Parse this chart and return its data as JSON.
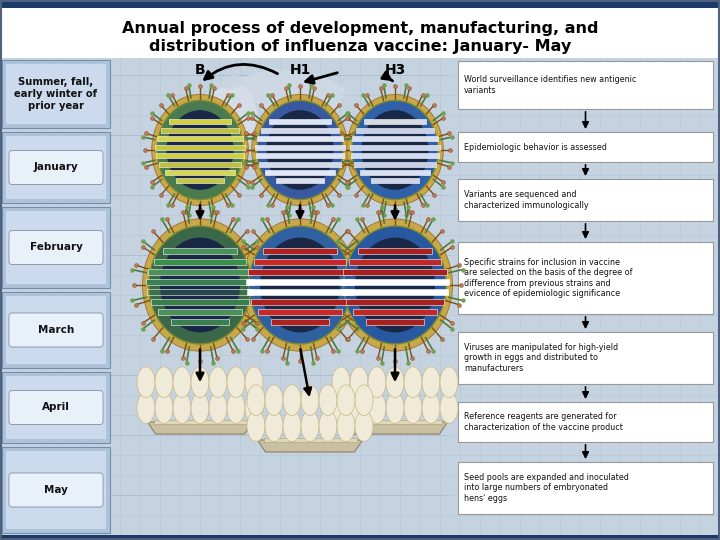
{
  "title_line1": "Annual process of development, manufacturing, and",
  "title_line2": "distribution of influenza vaccine: January- May",
  "title_fontsize": 11.5,
  "bg_color": "#c5d3e0",
  "panel_bg": "#d8e4ee",
  "grid_color": "#b8c8d8",
  "time_labels": [
    "Summer, fall,\nearly winter of\nprior year",
    "January",
    "February",
    "March",
    "April",
    "May"
  ],
  "virus_labels": [
    "B",
    "H1",
    "H3"
  ],
  "right_boxes": [
    "World surveillance identifies new antigenic\nvariants",
    "Epidemiologic behavior is assessed",
    "Variants are sequenced and\ncharacterized immunologically",
    "Specific strains for inclusion in vaccine\nare selected on the basis of the degree of\ndifference from previous strains and\nevicence of epidemiologic significance",
    "Viruses are manipulated for high-yield\ngrowth in eggs and distributed to\nmanufacturers",
    "Reference reagents are generated for\ncharacterization of the vaccine product",
    "Seed pools are expanded and inoculated\ninto large numbers of embryonated\nhens' eggs"
  ]
}
